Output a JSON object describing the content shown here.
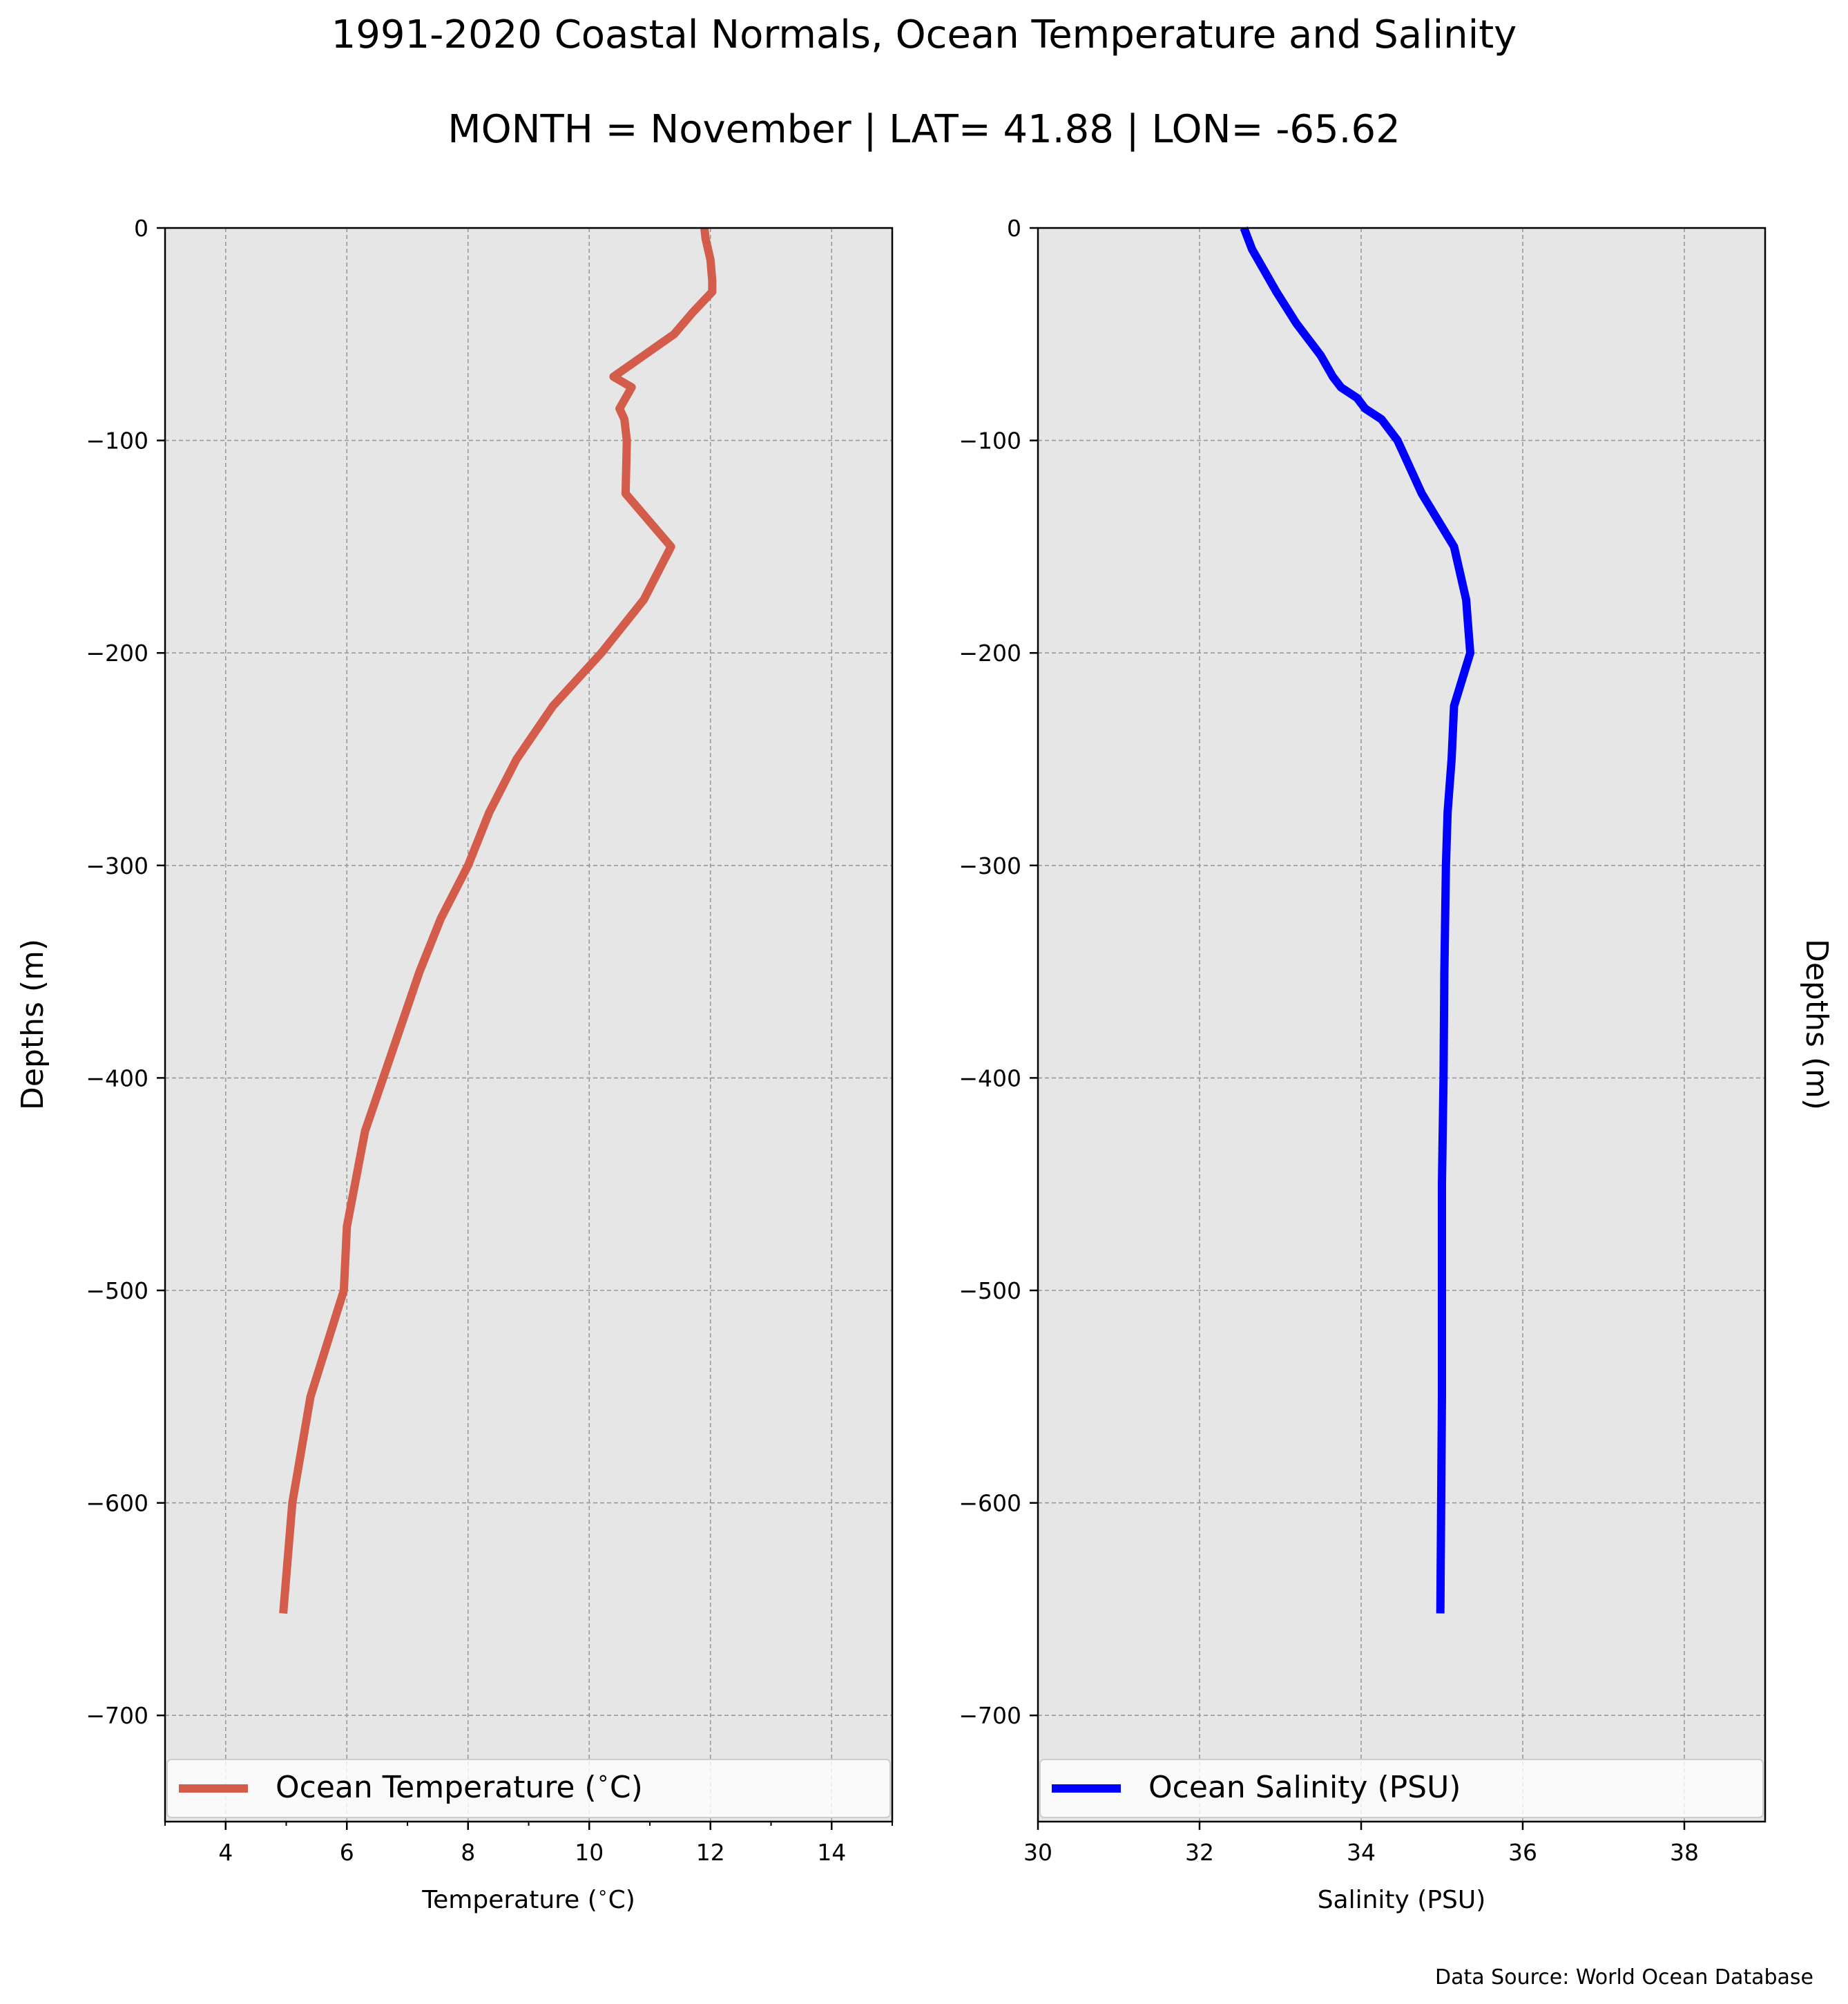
{
  "title": "1991-2020 Coastal Normals, Ocean Temperature and Salinity",
  "subtitle": "MONTH = November | LAT= 41.88 | LON= -65.62",
  "footnote": "Data Source: World Ocean Database",
  "colors": {
    "temperature": "#d35c4b",
    "salinity": "#0000ff",
    "panel_bg": "#e6e6e6",
    "grid": "#999999"
  },
  "chart_data": [
    {
      "type": "line",
      "xlabel": "Temperature ($^\\circ$C)",
      "ylabel": "Depths (m)",
      "xlim": [
        3,
        15
      ],
      "ylim": [
        -750,
        0
      ],
      "xticks": [
        4,
        6,
        8,
        10,
        12,
        14
      ],
      "yticks": [
        0,
        -100,
        -200,
        -300,
        -400,
        -500,
        -600,
        -700
      ],
      "grid": true,
      "legend": "lower-center",
      "series": [
        {
          "name": "Ocean Temperature ($^\\circ$C)",
          "color": "#d35c4b",
          "x": [
            11.9,
            11.92,
            12.0,
            12.03,
            12.03,
            11.7,
            11.4,
            10.9,
            10.4,
            10.7,
            10.5,
            10.58,
            10.62,
            10.6,
            10.6,
            11.35,
            10.9,
            10.2,
            9.4,
            8.8,
            8.35,
            8.0,
            7.55,
            7.2,
            6.6,
            6.3,
            6.0,
            5.95,
            5.4,
            5.1,
            4.95
          ],
          "y": [
            0,
            -5,
            -15,
            -25,
            -30,
            -40,
            -50,
            -60,
            -70,
            -75,
            -85,
            -90,
            -100,
            -125,
            -125,
            -150,
            -175,
            -200,
            -225,
            -250,
            -275,
            -300,
            -325,
            -350,
            -400,
            -425,
            -470,
            -500,
            -550,
            -600,
            -652
          ]
        }
      ]
    },
    {
      "type": "line",
      "xlabel": "Salinity (PSU)",
      "ylabel": "Depths (m)",
      "xlim": [
        30,
        39
      ],
      "ylim": [
        -750,
        0
      ],
      "xticks": [
        30,
        32,
        34,
        36,
        38
      ],
      "yticks": [
        0,
        -100,
        -200,
        -300,
        -400,
        -500,
        -600,
        -700
      ],
      "grid": true,
      "legend": "lower-center",
      "series": [
        {
          "name": "Ocean Salinity (PSU)",
          "color": "#0000ff",
          "x": [
            32.55,
            32.65,
            32.8,
            32.95,
            33.2,
            33.5,
            33.65,
            33.75,
            33.95,
            34.05,
            34.25,
            34.45,
            34.75,
            35.15,
            35.3,
            35.32,
            35.35,
            35.15,
            35.12,
            35.07,
            35.05,
            35.03,
            35.02,
            35.0,
            35.0,
            35.0,
            34.98
          ],
          "y": [
            0,
            -10,
            -20,
            -30,
            -45,
            -60,
            -70,
            -75,
            -80,
            -85,
            -90,
            -100,
            -125,
            -150,
            -175,
            -185,
            -200,
            -225,
            -250,
            -275,
            -300,
            -350,
            -400,
            -450,
            -500,
            -550,
            -652
          ]
        }
      ]
    }
  ]
}
